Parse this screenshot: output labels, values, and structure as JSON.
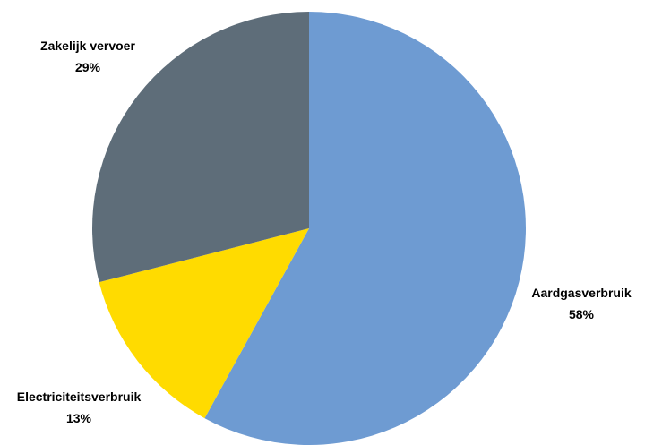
{
  "chart_data": {
    "type": "pie",
    "title": "",
    "slices": [
      {
        "label": "Aardgasverbruik",
        "value": 58,
        "value_label": "58%",
        "color": "#6e9bd2"
      },
      {
        "label": "Electriciteitsverbruik",
        "value": 13,
        "value_label": "13%",
        "color": "#ffdb00"
      },
      {
        "label": "Zakelijk vervoer",
        "value": 29,
        "value_label": "29%",
        "color": "#5e6d79"
      }
    ],
    "start_angle": "12 o'clock",
    "direction": "clockwise",
    "legend": "none",
    "data_labels": "outside, category name and percentage"
  }
}
